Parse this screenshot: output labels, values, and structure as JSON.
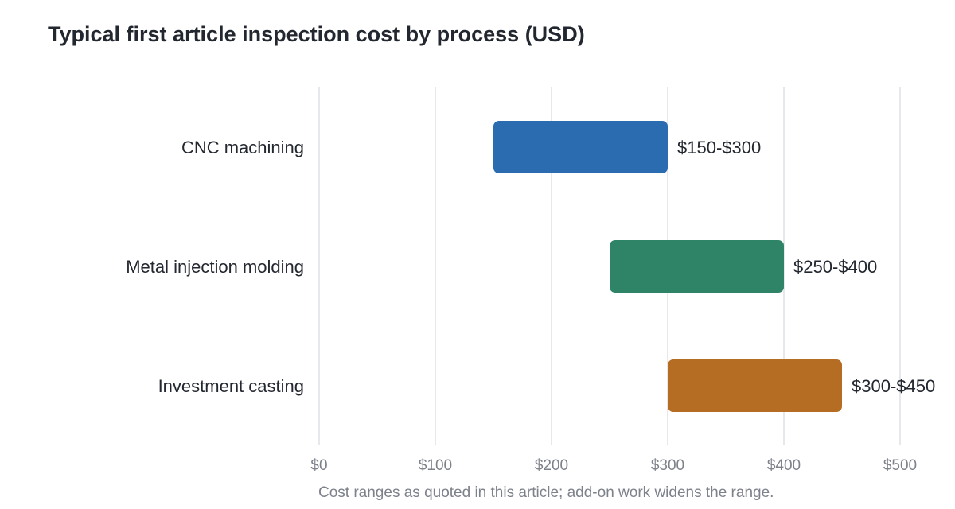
{
  "chart_data": {
    "type": "bar",
    "orientation": "horizontal",
    "title": "Typical first article inspection cost by process (USD)",
    "xlabel": "",
    "ylabel": "",
    "categories": [
      "CNC machining",
      "Metal injection molding",
      "Investment casting"
    ],
    "ranges": [
      {
        "category": "CNC machining",
        "low": 150,
        "high": 300,
        "label": "$150-$300",
        "color": "#2b6cb0"
      },
      {
        "category": "Metal injection molding",
        "low": 250,
        "high": 400,
        "label": "$250-$400",
        "color": "#2f8468"
      },
      {
        "category": "Investment casting",
        "low": 300,
        "high": 450,
        "label": "$300-$450",
        "color": "#b56d23"
      }
    ],
    "xlim": [
      0,
      500
    ],
    "xticks": [
      0,
      100,
      200,
      300,
      400,
      500
    ],
    "xtick_labels": [
      "$0",
      "$100",
      "$200",
      "$300",
      "$400",
      "$500"
    ],
    "grid": "vertical",
    "legend": "none",
    "footnote": "Cost ranges as quoted in this article; add-on work widens the range."
  }
}
